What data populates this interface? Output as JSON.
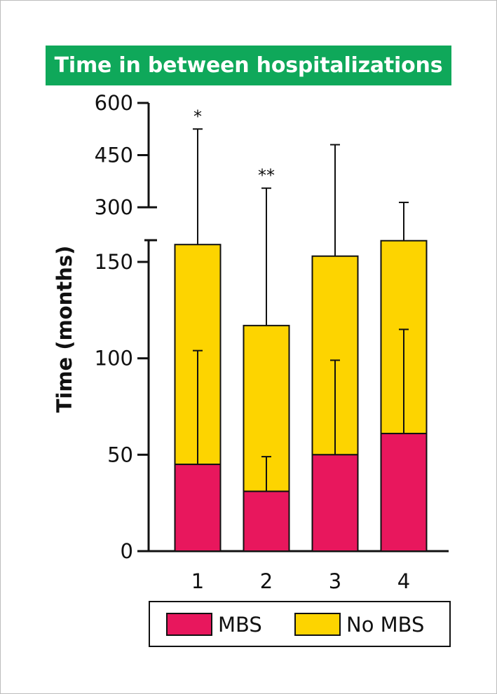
{
  "colors": {
    "title_bg": "#0fa85a",
    "mbs": "#e8175d",
    "no_mbs": "#fdd400",
    "axis": "#111111"
  },
  "chart_data": {
    "type": "bar",
    "stacked": true,
    "title": "Time in between hospitalizations",
    "xlabel": "",
    "ylabel": "Time (months)",
    "categories": [
      "1",
      "2",
      "3",
      "4"
    ],
    "y_axis_break": {
      "lower_range": [
        0,
        160
      ],
      "upper_range": [
        300,
        600
      ]
    },
    "yticks_lower": [
      "0",
      "50",
      "100",
      "150"
    ],
    "yticks_upper": [
      "300",
      "450",
      "600"
    ],
    "series": [
      {
        "name": "MBS",
        "values": [
          45,
          31,
          50,
          61
        ],
        "error_top": [
          104,
          49,
          99,
          115
        ]
      },
      {
        "name": "No MBS",
        "totals": [
          159,
          117,
          153,
          161
        ],
        "error_top": [
          525,
          355,
          480,
          314
        ]
      }
    ],
    "significance": [
      "*",
      "**",
      "",
      ""
    ],
    "legend": [
      "MBS",
      "No MBS"
    ],
    "legend_position": "bottom"
  }
}
